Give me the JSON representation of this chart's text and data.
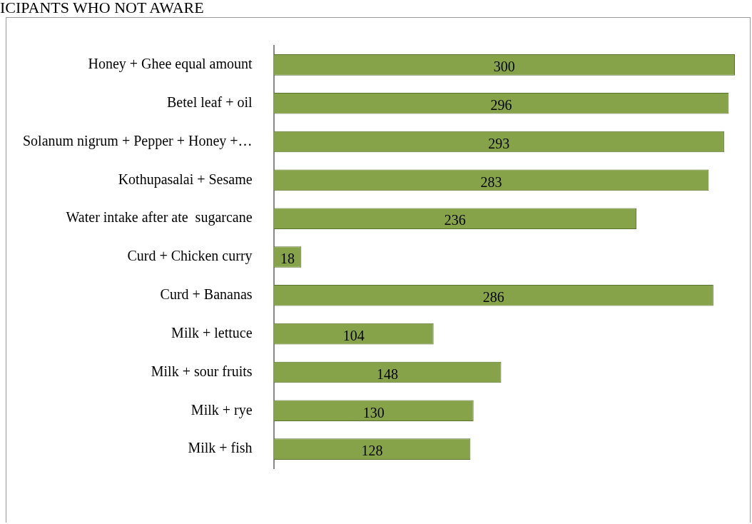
{
  "chart_data": {
    "type": "bar",
    "orientation": "horizontal",
    "title": "ICIPANTS WHO NOT AWARE",
    "categories": [
      "Honey + Ghee equal amount",
      "Betel leaf + oil",
      "Solanum nigrum + Pepper + Honey +…",
      "Kothupasalai + Sesame",
      "Water intake after ate  sugarcane",
      "Curd + Chicken curry",
      "Curd + Bananas",
      "Milk + lettuce",
      "Milk + sour fruits",
      "Milk + rye",
      "Milk + fish"
    ],
    "values": [
      300,
      296,
      293,
      283,
      236,
      18,
      286,
      104,
      148,
      130,
      128
    ],
    "color": "#86a34a",
    "data_labels": true
  }
}
